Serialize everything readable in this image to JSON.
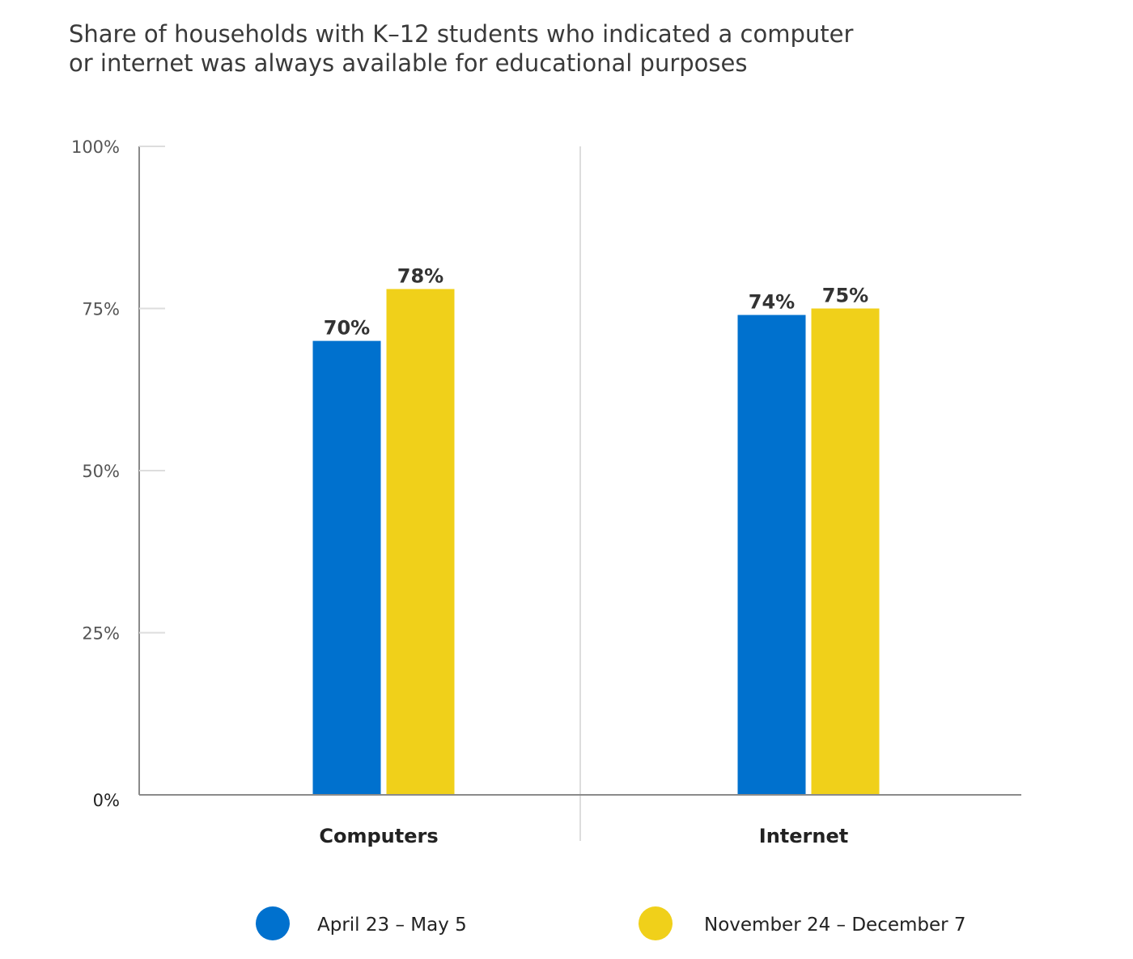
{
  "title": {
    "line1": "Share of households with K–12 students who indicated a computer",
    "line2": "or internet was always available for educational purposes"
  },
  "colors": {
    "series_blue": "#0071ce",
    "series_yellow": "#f0d01a",
    "axis": "#8a8a8a",
    "grid": "#dddddd"
  },
  "chart_data": {
    "type": "bar",
    "title": "Share of households with K–12 students who indicated a computer or internet was always available for educational purposes",
    "categories": [
      "Computers",
      "Internet"
    ],
    "series": [
      {
        "name": "April 23 – May 5",
        "values": [
          70,
          74
        ],
        "labels": [
          "70%",
          "74%"
        ],
        "color": "#0071ce"
      },
      {
        "name": "November 24 – December 7",
        "values": [
          78,
          75
        ],
        "labels": [
          "78%",
          "75%"
        ],
        "color": "#f0d01a"
      }
    ],
    "xlabel": "",
    "ylabel": "",
    "ylim": [
      0,
      100
    ],
    "yticks": [
      0,
      25,
      50,
      75,
      100
    ],
    "ytick_labels": [
      "0%",
      "25%",
      "50%",
      "75%",
      "100%"
    ],
    "legend_position": "bottom",
    "grid": false
  }
}
